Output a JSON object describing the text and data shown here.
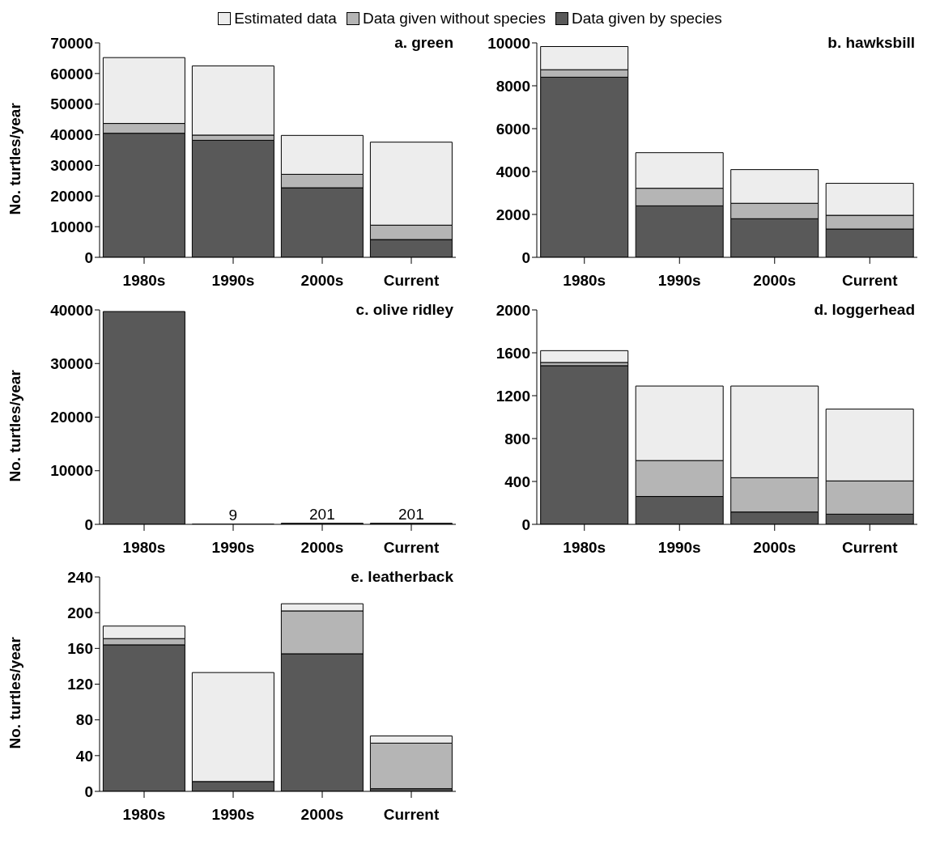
{
  "chart_data": [
    {
      "type": "bar",
      "title": "a. green",
      "ylabel": "No. turtles/year",
      "categories": [
        "1980s",
        "1990s",
        "2000s",
        "Current"
      ],
      "stacked": true,
      "legend": "top",
      "ylim": [
        0,
        70000
      ],
      "yticks": [
        0,
        10000,
        20000,
        30000,
        40000,
        50000,
        60000,
        70000
      ],
      "series": [
        {
          "name": "Data given by species",
          "color": "#595959",
          "values": [
            40500,
            38200,
            22700,
            5800
          ]
        },
        {
          "name": "Data given without species",
          "color": "#b5b5b5",
          "values": [
            3200,
            1700,
            4400,
            4700
          ]
        },
        {
          "name": "Estimated data",
          "color": "#ededed",
          "values": [
            21500,
            22600,
            12700,
            27100
          ]
        }
      ]
    },
    {
      "type": "bar",
      "title": "b. hawksbill",
      "categories": [
        "1980s",
        "1990s",
        "2000s",
        "Current"
      ],
      "stacked": true,
      "ylim": [
        0,
        10000
      ],
      "yticks": [
        0,
        2000,
        4000,
        6000,
        8000,
        10000
      ],
      "series": [
        {
          "color": "#595959",
          "values": [
            8400,
            2400,
            1800,
            1320
          ]
        },
        {
          "color": "#b5b5b5",
          "values": [
            350,
            820,
            720,
            640
          ]
        },
        {
          "color": "#ededed",
          "values": [
            1080,
            1660,
            1570,
            1490
          ]
        }
      ]
    },
    {
      "type": "bar",
      "title": "c. olive ridley",
      "ylabel": "No. turtles/year",
      "categories": [
        "1980s",
        "1990s",
        "2000s",
        "Current"
      ],
      "stacked": true,
      "ylim": [
        0,
        40000
      ],
      "yticks": [
        0,
        10000,
        20000,
        30000,
        40000
      ],
      "series": [
        {
          "color": "#595959",
          "values": [
            39700,
            9,
            201,
            201
          ],
          "value_labels": [
            null,
            "9",
            "201",
            "201"
          ]
        }
      ]
    },
    {
      "type": "bar",
      "title": "d. loggerhead",
      "categories": [
        "1980s",
        "1990s",
        "2000s",
        "Current"
      ],
      "stacked": true,
      "ylim": [
        0,
        2000
      ],
      "yticks": [
        0,
        400,
        800,
        1200,
        1600,
        2000
      ],
      "series": [
        {
          "color": "#595959",
          "values": [
            1480,
            260,
            115,
            95
          ]
        },
        {
          "color": "#b5b5b5",
          "values": [
            30,
            335,
            320,
            310
          ]
        },
        {
          "color": "#ededed",
          "values": [
            110,
            695,
            855,
            670
          ]
        }
      ]
    },
    {
      "type": "bar",
      "title": "e. leatherback",
      "ylabel": "No. turtles/year",
      "categories": [
        "1980s",
        "1990s",
        "2000s",
        "Current"
      ],
      "stacked": true,
      "ylim": [
        0,
        240
      ],
      "yticks": [
        0,
        40,
        80,
        120,
        160,
        200,
        240
      ],
      "series": [
        {
          "color": "#595959",
          "values": [
            164,
            11,
            154,
            3
          ]
        },
        {
          "color": "#b5b5b5",
          "values": [
            7,
            0,
            48,
            51
          ]
        },
        {
          "color": "#ededed",
          "values": [
            14,
            122,
            8,
            8
          ]
        }
      ]
    }
  ]
}
